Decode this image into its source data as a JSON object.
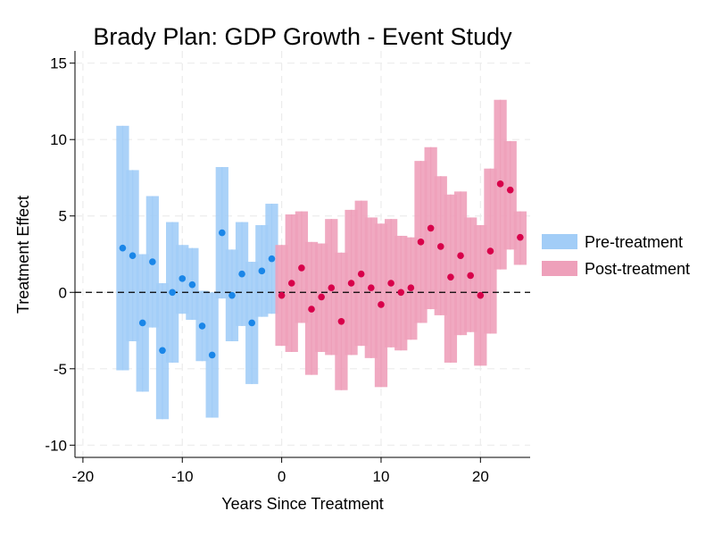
{
  "chart_data": {
    "type": "event_study",
    "title": "Brady Plan: GDP Growth - Event Study",
    "xlabel": "Years Since Treatment",
    "ylabel": "Treatment Effect",
    "xlim": [
      -20.8,
      25
    ],
    "ylim": [
      -10.8,
      15.8
    ],
    "xticks": [
      -20,
      -10,
      0,
      10,
      20
    ],
    "yticks": [
      -10,
      -5,
      0,
      5,
      10,
      15
    ],
    "grid": true,
    "reference_line_y": 0,
    "legend_position": "right",
    "colors": {
      "pre_band": "#a2cdf7",
      "pre_dot": "#1a86e8",
      "post_band": "#eea0ba",
      "post_dot": "#d8004a"
    },
    "series": [
      {
        "name": "Pre-treatment",
        "points": [
          {
            "x": -16,
            "y": 2.9,
            "lo": -5.1,
            "hi": 10.9
          },
          {
            "x": -15,
            "y": 2.4,
            "lo": -3.2,
            "hi": 8.0
          },
          {
            "x": -14,
            "y": -2.0,
            "lo": -6.5,
            "hi": 2.5
          },
          {
            "x": -13,
            "y": 2.0,
            "lo": -2.3,
            "hi": 6.3
          },
          {
            "x": -12,
            "y": -3.8,
            "lo": -8.3,
            "hi": 0.6
          },
          {
            "x": -11,
            "y": 0.0,
            "lo": -4.6,
            "hi": 4.6
          },
          {
            "x": -10,
            "y": 0.9,
            "lo": -1.4,
            "hi": 3.1
          },
          {
            "x": -9,
            "y": 0.5,
            "lo": -1.8,
            "hi": 2.9
          },
          {
            "x": -8,
            "y": -2.2,
            "lo": -4.5,
            "hi": 0.1
          },
          {
            "x": -7,
            "y": -4.1,
            "lo": -8.2,
            "hi": 0.0
          },
          {
            "x": -6,
            "y": 3.9,
            "lo": -0.4,
            "hi": 8.2
          },
          {
            "x": -5,
            "y": -0.2,
            "lo": -3.2,
            "hi": 2.8
          },
          {
            "x": -4,
            "y": 1.2,
            "lo": -2.2,
            "hi": 4.6
          },
          {
            "x": -3,
            "y": -2.0,
            "lo": -6.0,
            "hi": 2.0
          },
          {
            "x": -2,
            "y": 1.4,
            "lo": -1.6,
            "hi": 4.4
          },
          {
            "x": -1,
            "y": 2.2,
            "lo": -1.4,
            "hi": 5.8
          }
        ]
      },
      {
        "name": "Post-treatment",
        "points": [
          {
            "x": 0,
            "y": -0.2,
            "lo": -3.5,
            "hi": 3.1
          },
          {
            "x": 1,
            "y": 0.6,
            "lo": -3.9,
            "hi": 5.1
          },
          {
            "x": 2,
            "y": 1.6,
            "lo": -2.0,
            "hi": 5.3
          },
          {
            "x": 3,
            "y": -1.1,
            "lo": -5.4,
            "hi": 3.3
          },
          {
            "x": 4,
            "y": -0.3,
            "lo": -3.9,
            "hi": 3.2
          },
          {
            "x": 5,
            "y": 0.3,
            "lo": -4.1,
            "hi": 4.8
          },
          {
            "x": 6,
            "y": -1.9,
            "lo": -6.4,
            "hi": 2.6
          },
          {
            "x": 7,
            "y": 0.6,
            "lo": -4.1,
            "hi": 5.4
          },
          {
            "x": 8,
            "y": 1.2,
            "lo": -3.5,
            "hi": 6.0
          },
          {
            "x": 9,
            "y": 0.3,
            "lo": -4.3,
            "hi": 4.9
          },
          {
            "x": 10,
            "y": -0.8,
            "lo": -6.2,
            "hi": 4.5
          },
          {
            "x": 11,
            "y": 0.6,
            "lo": -3.6,
            "hi": 4.8
          },
          {
            "x": 12,
            "y": 0.0,
            "lo": -3.8,
            "hi": 3.7
          },
          {
            "x": 13,
            "y": 0.3,
            "lo": -3.1,
            "hi": 3.6
          },
          {
            "x": 14,
            "y": 3.3,
            "lo": -2.0,
            "hi": 8.6
          },
          {
            "x": 15,
            "y": 4.2,
            "lo": -1.1,
            "hi": 9.5
          },
          {
            "x": 16,
            "y": 3.0,
            "lo": -1.5,
            "hi": 7.6
          },
          {
            "x": 17,
            "y": 1.0,
            "lo": -4.6,
            "hi": 6.4
          },
          {
            "x": 18,
            "y": 2.4,
            "lo": -2.8,
            "hi": 6.6
          },
          {
            "x": 19,
            "y": 1.1,
            "lo": -2.6,
            "hi": 4.9
          },
          {
            "x": 20,
            "y": -0.2,
            "lo": -4.8,
            "hi": 4.4
          },
          {
            "x": 21,
            "y": 2.7,
            "lo": -2.7,
            "hi": 8.1
          },
          {
            "x": 22,
            "y": 7.1,
            "lo": 1.5,
            "hi": 12.6
          },
          {
            "x": 23,
            "y": 6.7,
            "lo": 2.8,
            "hi": 9.9
          },
          {
            "x": 24,
            "y": 3.6,
            "lo": 1.8,
            "hi": 5.3
          }
        ]
      }
    ]
  }
}
